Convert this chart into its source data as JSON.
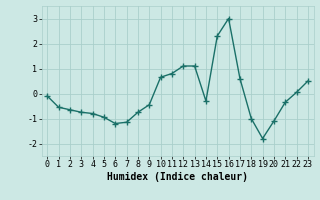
{
  "title": "",
  "xlabel": "Humidex (Indice chaleur)",
  "xlim": [
    -0.5,
    23.5
  ],
  "ylim": [
    -2.5,
    3.5
  ],
  "yticks": [
    -2,
    -1,
    0,
    1,
    2,
    3
  ],
  "xticks": [
    0,
    1,
    2,
    3,
    4,
    5,
    6,
    7,
    8,
    9,
    10,
    11,
    12,
    13,
    14,
    15,
    16,
    17,
    18,
    19,
    20,
    21,
    22,
    23
  ],
  "background_color": "#cce8e4",
  "grid_color": "#aacfcb",
  "line_color": "#1a7068",
  "line_width": 1.0,
  "marker": "+",
  "marker_size": 4,
  "marker_edge_width": 1.0,
  "series": [
    [
      0,
      -0.1
    ],
    [
      1,
      -0.55
    ],
    [
      2,
      -0.65
    ],
    [
      3,
      -0.75
    ],
    [
      4,
      -0.8
    ],
    [
      5,
      -0.95
    ],
    [
      6,
      -1.2
    ],
    [
      7,
      -1.15
    ],
    [
      8,
      -0.75
    ],
    [
      9,
      -0.45
    ],
    [
      10,
      0.65
    ],
    [
      11,
      0.8
    ],
    [
      12,
      1.1
    ],
    [
      13,
      1.1
    ],
    [
      14,
      -0.3
    ],
    [
      15,
      2.3
    ],
    [
      16,
      3.0
    ],
    [
      17,
      0.6
    ],
    [
      18,
      -1.0
    ],
    [
      19,
      -1.8
    ],
    [
      20,
      -1.1
    ],
    [
      21,
      -0.35
    ],
    [
      22,
      0.05
    ],
    [
      23,
      0.5
    ]
  ],
  "tick_fontsize": 6,
  "label_fontsize": 7
}
